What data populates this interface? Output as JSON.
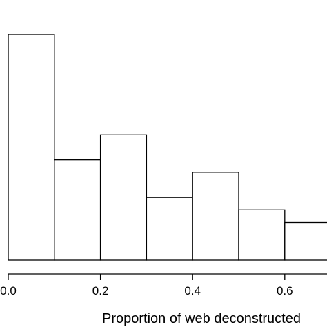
{
  "chart_data": {
    "type": "bar",
    "subtype": "histogram",
    "title": "",
    "xlabel": "Proportion of web deconstructed",
    "ylabel": "",
    "bins": [
      {
        "x0": 0.0,
        "x1": 0.1,
        "value": 18
      },
      {
        "x0": 0.1,
        "x1": 0.2,
        "value": 8
      },
      {
        "x0": 0.2,
        "x1": 0.3,
        "value": 10
      },
      {
        "x0": 0.3,
        "x1": 0.4,
        "value": 5
      },
      {
        "x0": 0.4,
        "x1": 0.5,
        "value": 7
      },
      {
        "x0": 0.5,
        "x1": 0.6,
        "value": 4
      },
      {
        "x0": 0.6,
        "x1": 0.7,
        "value": 3
      }
    ],
    "xticks": [
      {
        "value": 0.0,
        "label": "0.0"
      },
      {
        "value": 0.2,
        "label": "0.2"
      },
      {
        "value": 0.4,
        "label": "0.4"
      },
      {
        "value": 0.6,
        "label": "0.6"
      }
    ],
    "xlim": [
      0.0,
      0.7
    ],
    "ylim": [
      0,
      18
    ],
    "grid": false,
    "legend": "none",
    "colors": {
      "bar_fill": "#ffffff",
      "bar_stroke": "#000000"
    }
  }
}
